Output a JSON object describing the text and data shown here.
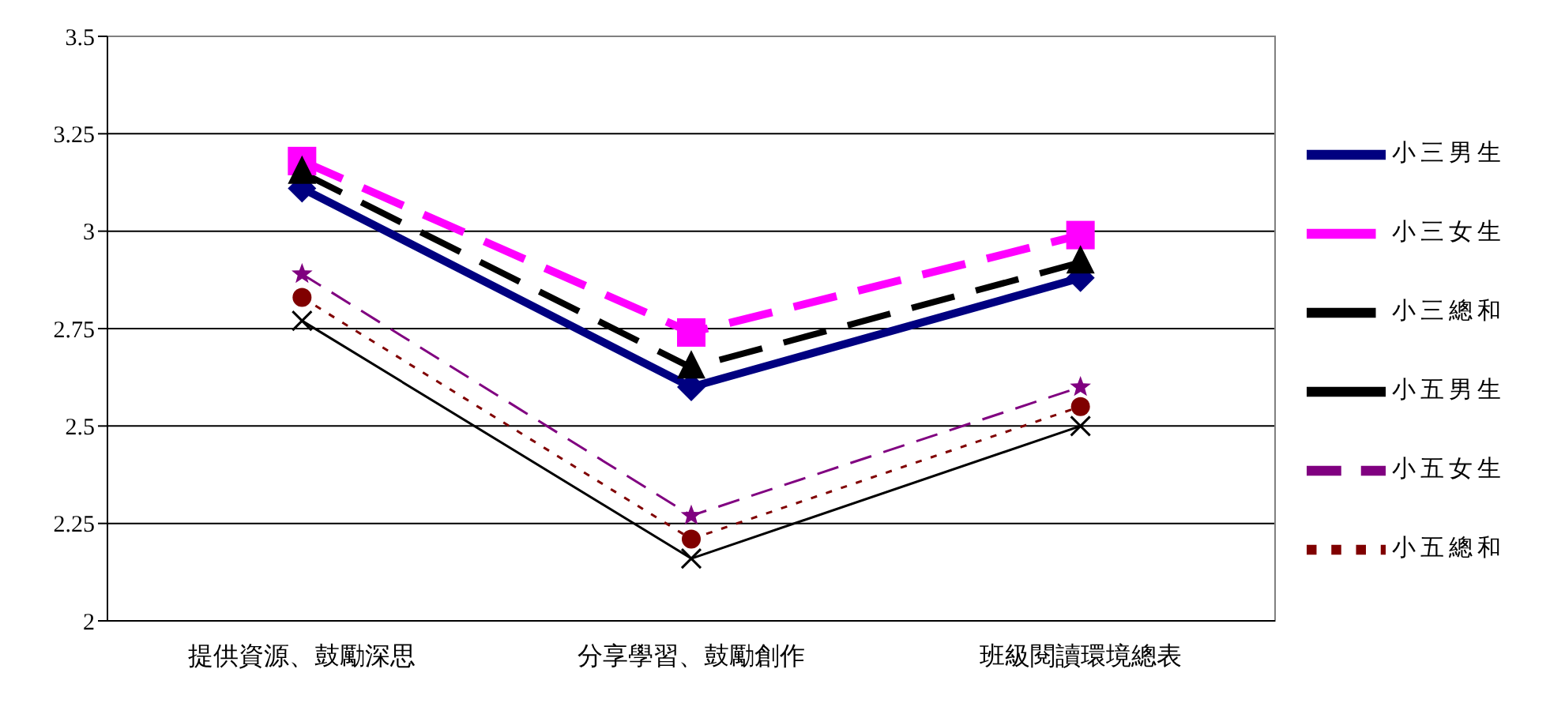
{
  "chart_data": {
    "type": "line",
    "categories": [
      "提供資源、鼓勵深思",
      "分享學習、鼓勵創作",
      "班級閱讀環境總表"
    ],
    "series": [
      {
        "name": "小三男生",
        "color": "#000080",
        "values": [
          3.11,
          2.6,
          2.88
        ],
        "marker": "diamond",
        "line_style": "solid"
      },
      {
        "name": "小三女生",
        "color": "#ff00ff",
        "values": [
          3.18,
          2.74,
          2.99
        ],
        "marker": "square",
        "line_style": "dashed"
      },
      {
        "name": "小三總和",
        "color": "#000000",
        "values": [
          3.15,
          2.65,
          2.92
        ],
        "marker": "triangle",
        "line_style": "dashed"
      },
      {
        "name": "小五男生",
        "color": "#000000",
        "values": [
          2.77,
          2.16,
          2.5
        ],
        "marker": "cross",
        "line_style": "solid"
      },
      {
        "name": "小五女生",
        "color": "#800080",
        "values": [
          2.89,
          2.27,
          2.6
        ],
        "marker": "star",
        "line_style": "dashed"
      },
      {
        "name": "小五總和",
        "color": "#800000",
        "values": [
          2.83,
          2.21,
          2.55
        ],
        "marker": "circle",
        "line_style": "dotted"
      }
    ],
    "ylim": [
      2,
      3.5
    ],
    "yticks": [
      2,
      2.25,
      2.5,
      2.75,
      3,
      3.25,
      3.5
    ],
    "grid": "y",
    "legend": "right"
  }
}
